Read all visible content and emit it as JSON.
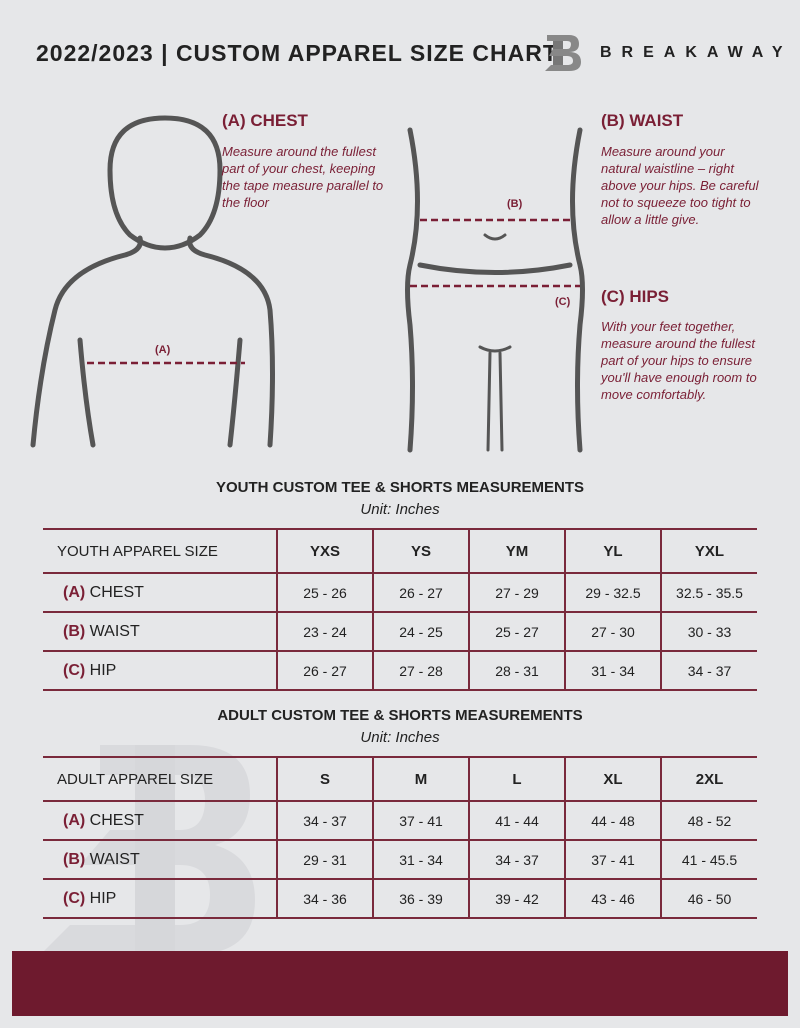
{
  "header": {
    "title": "2022/2023  |  CUSTOM APPAREL SIZE CHART",
    "brand": "BREAKAWAY",
    "logo_letter": "B"
  },
  "instructions": {
    "chest": {
      "title": "(A) CHEST",
      "text": "Measure around the fullest part of your chest, keeping the tape measure parallel to the floor",
      "marker": "(A)"
    },
    "waist": {
      "title": "(B) WAIST",
      "text": "Measure around your natural waistline – right above your hips. Be careful not to squeeze too tight to allow a little give.",
      "marker": "(B)"
    },
    "hips": {
      "title": "(C) HIPS",
      "text": "With your feet together, measure around the fullest part of your hips to ensure you'll have enough room to move comfortably.",
      "marker": "(C)"
    }
  },
  "youth": {
    "title": "YOUTH CUSTOM TEE & SHORTS MEASUREMENTS",
    "unit": "Unit: Inches",
    "headers": [
      "YOUTH APPAREL SIZE",
      "YXS",
      "YS",
      "YM",
      "YL",
      "YXL"
    ],
    "rows": [
      {
        "code": "(A)",
        "name": "CHEST",
        "values": [
          "25 - 26",
          "26 - 27",
          "27 - 29",
          "29 - 32.5",
          "32.5 - 35.5"
        ]
      },
      {
        "code": "(B)",
        "name": "WAIST",
        "values": [
          "23 - 24",
          "24 - 25",
          "25 - 27",
          "27 - 30",
          "30 - 33"
        ]
      },
      {
        "code": "(C)",
        "name": "HIP",
        "values": [
          "26 - 27",
          "27 - 28",
          "28 - 31",
          "31 - 34",
          "34 - 37"
        ]
      }
    ]
  },
  "adult": {
    "title": "ADULT CUSTOM TEE & SHORTS MEASUREMENTS",
    "unit": "Unit: Inches",
    "headers": [
      "ADULT APPAREL SIZE",
      "S",
      "M",
      "L",
      "XL",
      "2XL"
    ],
    "rows": [
      {
        "code": "(A)",
        "name": "CHEST",
        "values": [
          "34 - 37",
          "37 - 41",
          "41 - 44",
          "44 - 48",
          "48 - 52"
        ]
      },
      {
        "code": "(B)",
        "name": "WAIST",
        "values": [
          "29 - 31",
          "31 - 34",
          "34 - 37",
          "37 - 41",
          "41 - 45.5"
        ]
      },
      {
        "code": "(C)",
        "name": "HIP",
        "values": [
          "34 - 36",
          "36 - 39",
          "39 - 42",
          "43 - 46",
          "46 - 50"
        ]
      }
    ]
  },
  "colors": {
    "accent": "#7a1f35",
    "footer": "#6e1a2e",
    "background": "#e6e7e9"
  }
}
